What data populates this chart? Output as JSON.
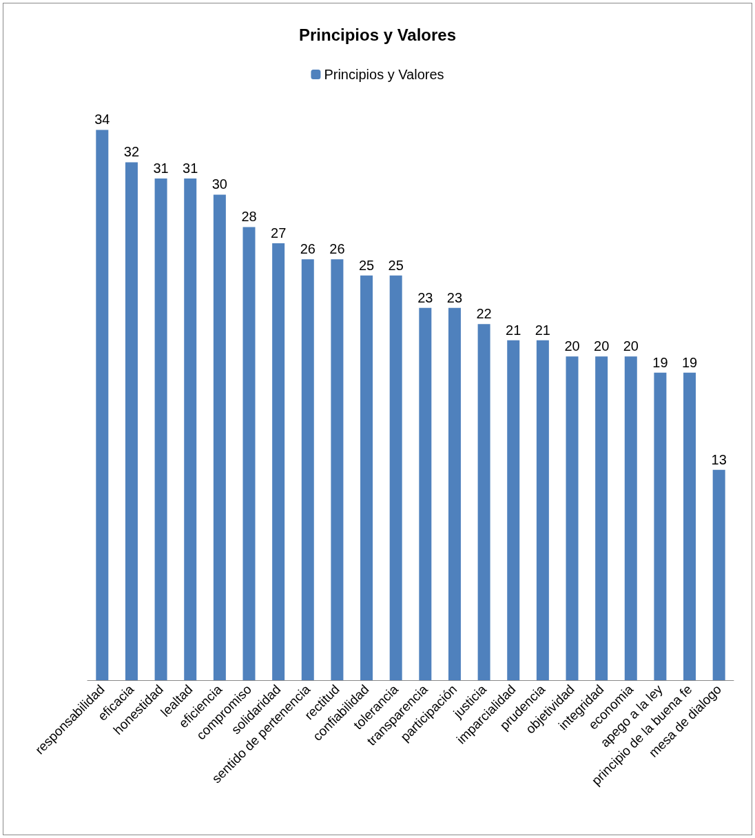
{
  "chart_data": {
    "type": "bar",
    "title": "Principios y Valores",
    "categories": [
      "responsabilidad",
      "eficacia",
      "honestidad",
      "lealtad",
      "eficiencia",
      "compromiso",
      "solidaridad",
      "sentido de pertenencia",
      "rectitud",
      "confiabilidad",
      "tolerancia",
      "transparencia",
      "participación",
      "justicia",
      "imparcialidad",
      "prudencia",
      "objetividad",
      "integridad",
      "economia",
      "apego a la ley",
      "principio de la buena fe",
      "mesa de dialogo"
    ],
    "series": [
      {
        "name": "Principios y Valores",
        "color": "#4f81bd",
        "values": [
          34,
          32,
          31,
          31,
          30,
          28,
          27,
          26,
          26,
          25,
          25,
          23,
          23,
          22,
          21,
          21,
          20,
          20,
          20,
          19,
          19,
          13
        ]
      }
    ],
    "data_labels": true,
    "legend": "top"
  }
}
